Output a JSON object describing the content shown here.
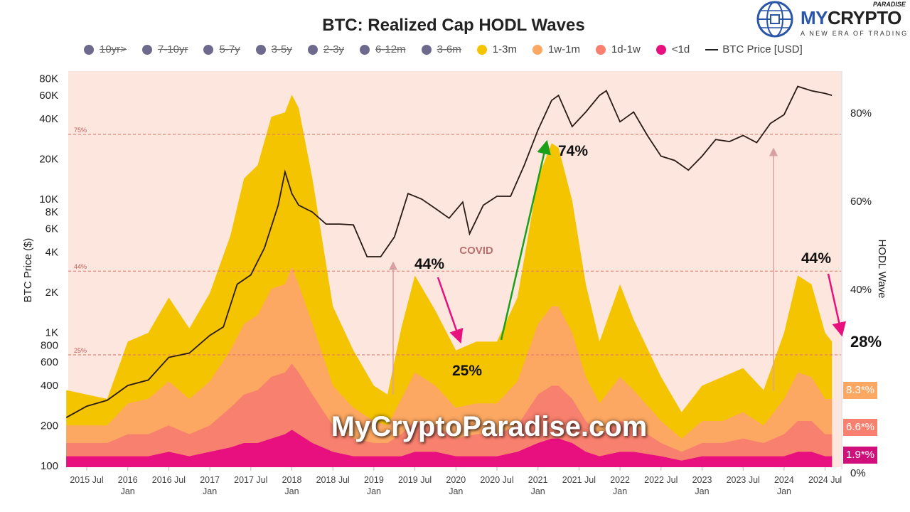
{
  "logo": {
    "brand_my": "MY",
    "brand_crypto": "CRYPTO",
    "brand_paradise": "PARADISE",
    "tagline": "A NEW ERA OF TRADING"
  },
  "watermark": "MyCryptoParadise.com",
  "chart_data": {
    "type": "area",
    "title": "BTC: Realized Cap HODL Waves",
    "ylabel_left": "BTC Price ($)",
    "ylabel_right": "HODL Wave",
    "left_axis": {
      "scale": "log",
      "range": [
        100,
        90000
      ],
      "ticks": [
        "80K",
        "60K",
        "40K",
        "20K",
        "10K",
        "8K",
        "6K",
        "4K",
        "2K",
        "1K",
        "800",
        "600",
        "400",
        "200",
        "100"
      ],
      "tick_values": [
        80000,
        60000,
        40000,
        20000,
        10000,
        8000,
        6000,
        4000,
        2000,
        1000,
        800,
        600,
        400,
        200,
        100
      ]
    },
    "right_axis": {
      "range": [
        0,
        90
      ],
      "ticks": [
        "80%",
        "60%",
        "40%",
        "0%"
      ],
      "tick_values": [
        80,
        60,
        40,
        0
      ]
    },
    "x_ticks": [
      {
        "date": "2015-07",
        "label": "2015 Jul",
        "sub": ""
      },
      {
        "date": "2016-01",
        "label": "2016",
        "sub": "Jan"
      },
      {
        "date": "2016-07",
        "label": "2016 Jul",
        "sub": ""
      },
      {
        "date": "2017-01",
        "label": "2017",
        "sub": "Jan"
      },
      {
        "date": "2017-07",
        "label": "2017 Jul",
        "sub": ""
      },
      {
        "date": "2018-01",
        "label": "2018",
        "sub": "Jan"
      },
      {
        "date": "2018-07",
        "label": "2018 Jul",
        "sub": ""
      },
      {
        "date": "2019-01",
        "label": "2019",
        "sub": "Jan"
      },
      {
        "date": "2019-07",
        "label": "2019 Jul",
        "sub": ""
      },
      {
        "date": "2020-01",
        "label": "2020",
        "sub": "Jan"
      },
      {
        "date": "2020-07",
        "label": "2020 Jul",
        "sub": ""
      },
      {
        "date": "2021-01",
        "label": "2021",
        "sub": "Jan"
      },
      {
        "date": "2021-07",
        "label": "2021 Jul",
        "sub": ""
      },
      {
        "date": "2022-01",
        "label": "2022",
        "sub": "Jan"
      },
      {
        "date": "2022-07",
        "label": "2022 Jul",
        "sub": ""
      },
      {
        "date": "2023-01",
        "label": "2023",
        "sub": "Jan"
      },
      {
        "date": "2023-07",
        "label": "2023 Jul",
        "sub": ""
      },
      {
        "date": "2024-01",
        "label": "2024",
        "sub": "Jan"
      },
      {
        "date": "2024-07",
        "label": "2024 Jul",
        "sub": ""
      }
    ],
    "legend": [
      {
        "name": "10yr>",
        "color": "#6e6a8e",
        "hidden": true
      },
      {
        "name": "7-10yr",
        "color": "#6e6a8e",
        "hidden": true
      },
      {
        "name": "5-7y",
        "color": "#6e6a8e",
        "hidden": true
      },
      {
        "name": "3-5y",
        "color": "#6e6a8e",
        "hidden": true
      },
      {
        "name": "2-3y",
        "color": "#6e6a8e",
        "hidden": true
      },
      {
        "name": "6-12m",
        "color": "#6e6a8e",
        "hidden": true
      },
      {
        "name": "3-6m",
        "color": "#6e6a8e",
        "hidden": true
      },
      {
        "name": "1-3m",
        "color": "#f5c400",
        "hidden": false
      },
      {
        "name": "1w-1m",
        "color": "#fca862",
        "hidden": false
      },
      {
        "name": "1d-1w",
        "color": "#f8806e",
        "hidden": false
      },
      {
        "name": "<1d",
        "color": "#e8107e",
        "hidden": false
      },
      {
        "name": "BTC Price [USD]",
        "color": "#2a1a14",
        "line": true
      }
    ],
    "dates": [
      "2015-04",
      "2015-10",
      "2016-01",
      "2016-04",
      "2016-07",
      "2016-10",
      "2017-01",
      "2017-04",
      "2017-06",
      "2017-08",
      "2017-10",
      "2017-12",
      "2018-01",
      "2018-02",
      "2018-04",
      "2018-07",
      "2018-10",
      "2019-01",
      "2019-03",
      "2019-05",
      "2019-07",
      "2019-10",
      "2020-01",
      "2020-04",
      "2020-07",
      "2020-10",
      "2021-01",
      "2021-03",
      "2021-04",
      "2021-06",
      "2021-08",
      "2021-10",
      "2022-01",
      "2022-03",
      "2022-07",
      "2022-10",
      "2023-01",
      "2023-04",
      "2023-07",
      "2023-10",
      "2024-01",
      "2024-03",
      "2024-05",
      "2024-07",
      "2024-08"
    ],
    "series": [
      {
        "name": "<1d",
        "color": "#e8107e",
        "values": [
          2,
          2,
          2,
          2,
          3,
          2,
          3,
          4,
          5,
          5,
          6,
          7,
          8,
          7,
          5,
          3,
          2,
          2,
          2,
          2,
          3,
          3,
          2,
          2,
          2,
          3,
          5,
          6,
          6,
          5,
          3,
          2,
          3,
          3,
          2,
          1,
          2,
          2,
          2,
          2,
          2,
          3,
          3,
          2,
          2
        ]
      },
      {
        "name": "1d-1w",
        "color": "#f8806e",
        "values": [
          3,
          3,
          5,
          5,
          6,
          5,
          6,
          9,
          11,
          12,
          14,
          14,
          15,
          14,
          11,
          6,
          4,
          3,
          3,
          5,
          7,
          6,
          4,
          5,
          5,
          6,
          11,
          12,
          12,
          10,
          7,
          5,
          7,
          6,
          3,
          2,
          3,
          3,
          4,
          3,
          5,
          7,
          7,
          5,
          5
        ]
      },
      {
        "name": "1w-1m",
        "color": "#fca862",
        "values": [
          4,
          4,
          7,
          8,
          10,
          8,
          10,
          13,
          16,
          17,
          20,
          20,
          22,
          20,
          16,
          9,
          7,
          5,
          4,
          8,
          11,
          9,
          7,
          7,
          7,
          10,
          16,
          18,
          18,
          15,
          10,
          7,
          10,
          8,
          5,
          3,
          5,
          5,
          6,
          4,
          8,
          11,
          10,
          8,
          8
        ]
      },
      {
        "name": "1-3m",
        "color": "#f5c400",
        "values": [
          8,
          6,
          14,
          15,
          19,
          16,
          20,
          26,
          33,
          34,
          39,
          39,
          39,
          40,
          33,
          18,
          13,
          8,
          7,
          16,
          22,
          17,
          13,
          14,
          14,
          19,
          33,
          37,
          36,
          30,
          21,
          14,
          21,
          16,
          10,
          6,
          8,
          10,
          10,
          8,
          15,
          22,
          21,
          15,
          13
        ]
      }
    ],
    "price": {
      "name": "BTC Price [USD]",
      "dates": [
        "2015-04",
        "2015-07",
        "2015-10",
        "2016-01",
        "2016-04",
        "2016-07",
        "2016-10",
        "2017-01",
        "2017-03",
        "2017-05",
        "2017-07",
        "2017-09",
        "2017-11",
        "2017-12",
        "2018-01",
        "2018-02",
        "2018-04",
        "2018-06",
        "2018-08",
        "2018-10",
        "2018-12",
        "2019-02",
        "2019-04",
        "2019-06",
        "2019-08",
        "2019-10",
        "2019-12",
        "2020-02",
        "2020-03",
        "2020-05",
        "2020-07",
        "2020-09",
        "2020-11",
        "2021-01",
        "2021-03",
        "2021-04",
        "2021-06",
        "2021-08",
        "2021-10",
        "2021-11",
        "2022-01",
        "2022-03",
        "2022-05",
        "2022-07",
        "2022-09",
        "2022-11",
        "2023-01",
        "2023-03",
        "2023-05",
        "2023-07",
        "2023-09",
        "2023-11",
        "2024-01",
        "2024-03",
        "2024-05",
        "2024-07",
        "2024-08"
      ],
      "values": [
        230,
        280,
        310,
        400,
        440,
        650,
        700,
        950,
        1100,
        2300,
        2700,
        4300,
        9000,
        16000,
        11000,
        9000,
        8000,
        6500,
        6500,
        6400,
        3700,
        3700,
        5200,
        11000,
        10000,
        8500,
        7200,
        9500,
        5500,
        9000,
        10500,
        10500,
        18000,
        33000,
        55000,
        60000,
        35000,
        45000,
        60000,
        65000,
        38000,
        45000,
        30000,
        21000,
        19500,
        16500,
        21000,
        28000,
        27000,
        30000,
        26500,
        37000,
        43000,
        70000,
        65000,
        62000,
        60000
      ]
    },
    "reference_lines": [
      {
        "value": 75,
        "label": "75%"
      },
      {
        "value": 44,
        "label": "44%"
      },
      {
        "value": 25,
        "label": "25%"
      }
    ],
    "annotations": {
      "covid": "COVID",
      "peak_2019": "44%",
      "low_2020": "25%",
      "peak_2021": "74%",
      "peak_2024": "44%",
      "current": "28%"
    },
    "current_tags": [
      {
        "band": "1w-1m",
        "label": "8.3*%"
      },
      {
        "band": "1d-1w",
        "label": "6.6*%"
      },
      {
        "band": "<1d",
        "label": "1.9*%"
      }
    ],
    "grid": false,
    "legend_position": "top"
  }
}
